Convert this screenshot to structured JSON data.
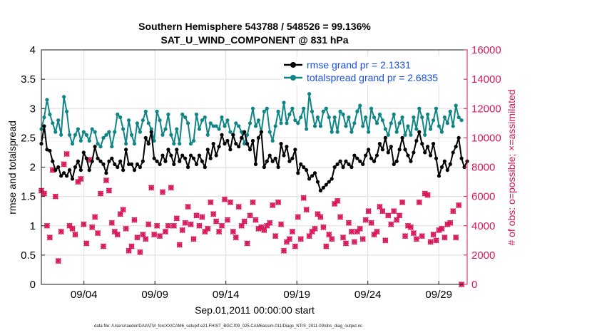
{
  "chart_data": {
    "type": "line",
    "title_line1": "Southern Hemisphere 543788 / 548526 = 99.136%",
    "title_line2": "SAT_U_WIND_COMPONENT @ 831 hPa",
    "xlabel": "Sep.01,2011 00:00:00 start",
    "ylabel_left": "rmse and totalspread",
    "ylabel_right": "# of obs: o=possible; ×=assimilated",
    "footnote": "data file: /Users/raeder/DAI/ATM_forcXX/CAM6_setup/f.e21.FHIST_BGC.f09_025.CAM6assim.011/Diags_NTrS_2011-09/obs_diag_output.nc",
    "x_range_days": [
      1.0,
      31.0
    ],
    "x_ticks": [
      {
        "day": 4,
        "label": "09/04"
      },
      {
        "day": 9,
        "label": "09/09"
      },
      {
        "day": 14,
        "label": "09/14"
      },
      {
        "day": 19,
        "label": "09/19"
      },
      {
        "day": 24,
        "label": "09/24"
      },
      {
        "day": 29,
        "label": "09/29"
      }
    ],
    "ylim_left": [
      0,
      4
    ],
    "yticks_left": [
      "0",
      "0.5",
      "1",
      "1.5",
      "2",
      "2.5",
      "3",
      "3.5",
      "4"
    ],
    "ylim_right": [
      0,
      16000
    ],
    "yticks_right": [
      "0",
      "2000",
      "4000",
      "6000",
      "8000",
      "10000",
      "12000",
      "14000",
      "16000"
    ],
    "grid": true,
    "legend_position": "top-right",
    "colors": {
      "rmse": "#000000",
      "totalspread": "#0f8585",
      "obs": "#d8175a",
      "legend_text": "#1a4fe0",
      "grid": "#dedede"
    },
    "series": [
      {
        "name": "rmse grand pr = 2.1331",
        "axis": "left",
        "style": "line-dots",
        "values": [
          2.4,
          2.7,
          2.3,
          2.28,
          2.1,
          1.95,
          2.0,
          1.85,
          1.9,
          1.85,
          1.95,
          1.8,
          2.0,
          2.1,
          1.95,
          2.25,
          2.15,
          1.95,
          2.1,
          2.35,
          2.15,
          2.1,
          2.05,
          1.9,
          2.1,
          2.15,
          2.05,
          2.0,
          2.1,
          1.95,
          2.3,
          2.05,
          2.05,
          1.95,
          2.05,
          2.0,
          2.1,
          2.5,
          2.4,
          2.6,
          2.15,
          2.1,
          2.05,
          2.2,
          2.1,
          2.3,
          2.2,
          2.05,
          2.3,
          2.1,
          2.2,
          2.15,
          2.0,
          2.2,
          2.15,
          2.05,
          2.2,
          2.1,
          2.0,
          2.3,
          2.15,
          2.4,
          2.2,
          2.35,
          2.55,
          2.4,
          2.45,
          2.3,
          2.55,
          2.4,
          2.35,
          2.5,
          2.6,
          2.4,
          2.3,
          2.45,
          2.05,
          2.5,
          2.6,
          2.0,
          2.1,
          2.2,
          2.1,
          2.15,
          2.0,
          2.4,
          2.2,
          2.35,
          2.1,
          2.15,
          2.3,
          1.9,
          2.05,
          2.0,
          1.95,
          1.8,
          1.85,
          1.9,
          1.75,
          1.6,
          1.65,
          1.7,
          1.75,
          1.8,
          2.0,
          2.05,
          2.1,
          2.0,
          2.1,
          2.05,
          2.0,
          2.2,
          2.15,
          2.1,
          2.05,
          2.2,
          2.3,
          2.15,
          2.1,
          2.2,
          2.4,
          2.3,
          2.5,
          2.25,
          2.35,
          2.05,
          2.1,
          2.3,
          2.5,
          2.3,
          2.2,
          2.1,
          2.25,
          2.45,
          2.6,
          2.4,
          2.25,
          2.35,
          2.2,
          2.4,
          2.15,
          1.85,
          2.0,
          2.1,
          1.95,
          2.05,
          2.25,
          2.35,
          2.5,
          2.15,
          2.0,
          2.1
        ]
      },
      {
        "name": "totalspread grand pr = 2.6835",
        "axis": "left",
        "style": "line-dots",
        "values": [
          2.65,
          2.85,
          3.15,
          2.9,
          2.75,
          2.6,
          2.8,
          2.55,
          3.2,
          2.95,
          2.55,
          2.4,
          2.55,
          2.65,
          2.45,
          2.6,
          2.55,
          2.45,
          2.65,
          2.6,
          2.4,
          2.35,
          2.5,
          2.55,
          2.6,
          2.35,
          2.6,
          2.9,
          2.85,
          2.65,
          2.4,
          2.8,
          2.55,
          2.4,
          2.75,
          2.6,
          2.8,
          2.95,
          2.75,
          2.65,
          2.45,
          2.95,
          2.8,
          2.55,
          2.65,
          2.9,
          2.55,
          2.4,
          2.65,
          2.4,
          2.9,
          2.85,
          2.75,
          2.4,
          2.45,
          2.9,
          2.65,
          2.8,
          2.85,
          2.55,
          2.75,
          2.7,
          2.7,
          2.65,
          2.85,
          2.7,
          2.8,
          2.6,
          2.55,
          2.75,
          2.7,
          2.6,
          2.4,
          2.55,
          2.75,
          3.0,
          2.7,
          2.8,
          2.6,
          2.95,
          3.0,
          2.6,
          2.45,
          2.7,
          2.95,
          2.75,
          3.1,
          2.75,
          2.9,
          3.0,
          2.8,
          2.75,
          2.85,
          3.0,
          2.65,
          3.25,
          2.95,
          2.7,
          2.85,
          2.7,
          2.95,
          3.0,
          2.85,
          2.6,
          2.85,
          2.6,
          2.95,
          2.9,
          2.7,
          2.85,
          2.6,
          2.75,
          2.95,
          3.05,
          2.7,
          2.85,
          2.6,
          3.0,
          2.85,
          2.75,
          2.9,
          2.8,
          2.65,
          2.55,
          2.75,
          2.9,
          2.6,
          2.75,
          2.85,
          2.55,
          2.7,
          2.55,
          2.85,
          2.65,
          3.0,
          2.85,
          2.55,
          2.9,
          2.65,
          2.8,
          3.0,
          2.7,
          2.6,
          2.85,
          2.75,
          2.95,
          2.7,
          3.05,
          2.85,
          2.8
        ]
      },
      {
        "name": "# of obs assimilated",
        "axis": "right",
        "style": "markers-x",
        "values": [
          6400,
          6200,
          4000,
          3200,
          7800,
          6000,
          1600,
          3600,
          8200,
          8900,
          4000,
          3800,
          3400,
          7000,
          7200,
          4100,
          2800,
          8500,
          3900,
          4600,
          3500,
          6200,
          2600,
          7100,
          6400,
          4200,
          3600,
          3400,
          4800,
          5100,
          3800,
          2300,
          2600,
          4400,
          3200,
          2200,
          3400,
          3100,
          4100,
          6600,
          3400,
          4000,
          3300,
          6300,
          3600,
          4000,
          6600,
          4000,
          4500,
          2700,
          3700,
          4200,
          5300,
          4100,
          3100,
          4700,
          4000,
          4600,
          3600,
          3800,
          5600,
          4800,
          4300,
          3600,
          4000,
          5800,
          4400,
          5600,
          3600,
          3200,
          5300,
          4000,
          4300,
          2800,
          4700,
          5600,
          4400,
          3800,
          3900,
          3700,
          4000,
          4200,
          5400,
          3300,
          5600,
          4100,
          2300,
          2900,
          3100,
          3600,
          2600,
          4600,
          3100,
          5900,
          5100,
          3300,
          3600,
          3800,
          4800,
          4600,
          3900,
          2600,
          3400,
          3100,
          5500,
          5700,
          4600,
          3200,
          2800,
          4200,
          3600,
          2900,
          3600,
          3800,
          3100,
          4400,
          5000,
          4200,
          3400,
          3600,
          5300,
          5000,
          3000,
          4700,
          4100,
          5000,
          4400,
          4700,
          5600,
          3300,
          4000,
          3900,
          3500,
          3100,
          5600,
          3300,
          6200,
          6100,
          2900,
          3400,
          3000,
          3700,
          3800,
          3200,
          4100,
          4200,
          5000,
          3200,
          5400,
          0
        ]
      },
      {
        "name": "# of obs possible",
        "axis": "right",
        "style": "markers-o",
        "values": [
          6400,
          6200,
          4000,
          3200,
          7800,
          6000,
          1600,
          3600,
          8200,
          8900,
          4000,
          3800,
          3400,
          7000,
          7200,
          4100,
          2800,
          8500,
          3900,
          4600,
          3500,
          6200,
          2600,
          7100,
          6400,
          4200,
          3600,
          3400,
          4800,
          5100,
          3800,
          2300,
          2600,
          4400,
          3200,
          2200,
          3400,
          3100,
          4100,
          6600,
          3400,
          4000,
          3300,
          6300,
          3600,
          4000,
          6600,
          4000,
          4500,
          2700,
          3700,
          4200,
          5300,
          4100,
          3100,
          4700,
          4000,
          4600,
          3600,
          3800,
          5600,
          4800,
          4300,
          3600,
          4000,
          5800,
          4400,
          5600,
          3600,
          3200,
          5300,
          4000,
          4300,
          2800,
          4700,
          5600,
          4400,
          3800,
          3900,
          3700,
          4000,
          4200,
          5400,
          3300,
          5600,
          4100,
          2300,
          2900,
          3100,
          3600,
          2600,
          4600,
          3100,
          5900,
          5100,
          3300,
          3600,
          3800,
          4800,
          4600,
          3900,
          2600,
          3400,
          3100,
          5500,
          5700,
          4600,
          3200,
          2800,
          4200,
          3600,
          2900,
          3600,
          3800,
          3100,
          4400,
          5000,
          4200,
          3400,
          3600,
          5300,
          5000,
          3000,
          4700,
          4100,
          5000,
          4400,
          4700,
          5600,
          3300,
          4000,
          3900,
          3500,
          3100,
          5600,
          3300,
          6200,
          6100,
          2900,
          3400,
          3000,
          3700,
          3800,
          3200,
          4100,
          4200,
          5000,
          3200,
          5400,
          0
        ]
      }
    ]
  }
}
